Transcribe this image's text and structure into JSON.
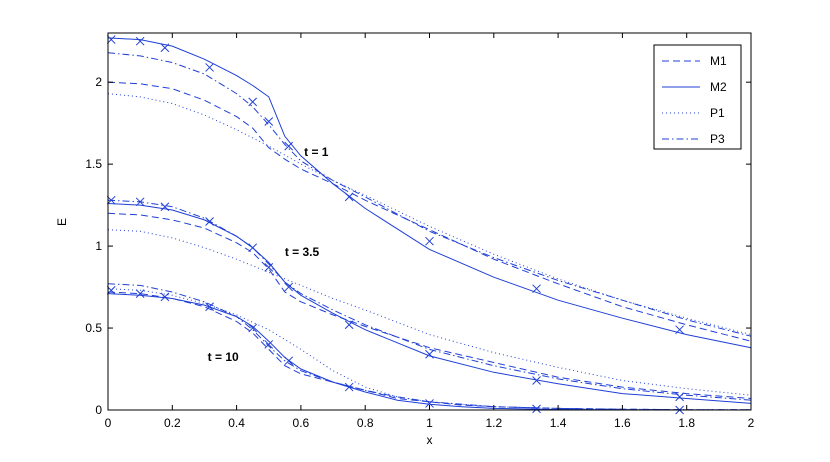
{
  "chart_data": {
    "type": "line",
    "xlabel": "x",
    "ylabel": "E",
    "xlim": [
      0,
      2
    ],
    "ylim": [
      0,
      2.3
    ],
    "xticks": [
      "0",
      "0.2",
      "0.4",
      "0.6",
      "0.8",
      "1",
      "1.2",
      "1.4",
      "1.6",
      "1.8",
      "2"
    ],
    "yticks": [
      "0",
      "0.5",
      "1",
      "1.5",
      "2"
    ],
    "grid": false,
    "legend_position": "top-right",
    "color": "#1f3fd6",
    "series": [
      {
        "name": "M1",
        "style": "dashed",
        "group": "t = 1",
        "x": [
          0,
          0.1,
          0.2,
          0.3,
          0.4,
          0.45,
          0.5,
          0.55,
          0.6,
          0.7,
          0.8,
          1.0,
          1.2,
          1.4,
          1.6,
          1.8,
          2.0
        ],
        "y": [
          2.0,
          1.99,
          1.96,
          1.89,
          1.79,
          1.72,
          1.6,
          1.53,
          1.47,
          1.38,
          1.28,
          1.1,
          0.92,
          0.77,
          0.63,
          0.52,
          0.42
        ]
      },
      {
        "name": "M2",
        "style": "solid",
        "group": "t = 1",
        "x": [
          0,
          0.1,
          0.2,
          0.3,
          0.4,
          0.45,
          0.5,
          0.55,
          0.6,
          0.7,
          0.8,
          1.0,
          1.2,
          1.4,
          1.6,
          1.8,
          2.0
        ],
        "y": [
          2.27,
          2.26,
          2.22,
          2.14,
          2.04,
          1.98,
          1.91,
          1.67,
          1.55,
          1.38,
          1.23,
          0.98,
          0.81,
          0.67,
          0.56,
          0.46,
          0.38
        ]
      },
      {
        "name": "P1",
        "style": "dotted",
        "group": "t = 1",
        "x": [
          0,
          0.1,
          0.2,
          0.3,
          0.4,
          0.5,
          0.6,
          0.7,
          0.8,
          1.0,
          1.2,
          1.4,
          1.6,
          1.8,
          2.0
        ],
        "y": [
          1.93,
          1.91,
          1.87,
          1.8,
          1.71,
          1.61,
          1.5,
          1.4,
          1.31,
          1.12,
          0.95,
          0.8,
          0.67,
          0.56,
          0.46
        ]
      },
      {
        "name": "P3",
        "style": "dashdot",
        "group": "t = 1",
        "x": [
          0,
          0.1,
          0.2,
          0.3,
          0.4,
          0.45,
          0.5,
          0.55,
          0.6,
          0.7,
          0.8,
          1.0,
          1.2,
          1.4,
          1.6,
          1.8,
          2.0
        ],
        "y": [
          2.18,
          2.16,
          2.12,
          2.05,
          1.93,
          1.85,
          1.74,
          1.62,
          1.52,
          1.4,
          1.3,
          1.09,
          0.93,
          0.79,
          0.67,
          0.55,
          0.45
        ]
      },
      {
        "name": "M1",
        "style": "dashed",
        "group": "t = 3.5",
        "x": [
          0,
          0.1,
          0.2,
          0.3,
          0.4,
          0.45,
          0.5,
          0.55,
          0.6,
          0.7,
          0.8,
          1.0,
          1.2,
          1.4,
          1.6,
          1.8,
          2.0
        ],
        "y": [
          1.2,
          1.19,
          1.16,
          1.11,
          1.02,
          0.96,
          0.86,
          0.72,
          0.66,
          0.58,
          0.51,
          0.38,
          0.29,
          0.2,
          0.14,
          0.1,
          0.07
        ]
      },
      {
        "name": "M2",
        "style": "solid",
        "group": "t = 3.5",
        "x": [
          0,
          0.1,
          0.2,
          0.3,
          0.4,
          0.45,
          0.5,
          0.55,
          0.6,
          0.7,
          0.8,
          1.0,
          1.2,
          1.4,
          1.6,
          1.8,
          2.0
        ],
        "y": [
          1.26,
          1.25,
          1.22,
          1.16,
          1.06,
          0.99,
          0.9,
          0.78,
          0.7,
          0.59,
          0.49,
          0.33,
          0.23,
          0.16,
          0.1,
          0.07,
          0.04
        ]
      },
      {
        "name": "P1",
        "style": "dotted",
        "group": "t = 3.5",
        "x": [
          0,
          0.1,
          0.2,
          0.3,
          0.4,
          0.5,
          0.6,
          0.7,
          0.8,
          1.0,
          1.2,
          1.4,
          1.6,
          1.8,
          2.0
        ],
        "y": [
          1.1,
          1.09,
          1.05,
          0.99,
          0.92,
          0.84,
          0.76,
          0.68,
          0.61,
          0.46,
          0.35,
          0.26,
          0.18,
          0.13,
          0.09
        ]
      },
      {
        "name": "P3",
        "style": "dashdot",
        "group": "t = 3.5",
        "x": [
          0,
          0.1,
          0.2,
          0.3,
          0.4,
          0.45,
          0.5,
          0.55,
          0.6,
          0.7,
          0.8,
          1.0,
          1.2,
          1.4,
          1.6,
          1.8,
          2.0
        ],
        "y": [
          1.28,
          1.27,
          1.24,
          1.17,
          1.06,
          0.99,
          0.89,
          0.78,
          0.71,
          0.61,
          0.52,
          0.37,
          0.27,
          0.19,
          0.13,
          0.09,
          0.06
        ]
      },
      {
        "name": "M1",
        "style": "dashed",
        "group": "t = 10",
        "x": [
          0,
          0.1,
          0.2,
          0.3,
          0.4,
          0.45,
          0.5,
          0.55,
          0.6,
          0.7,
          0.8,
          0.9,
          1.0,
          1.1,
          1.2,
          1.4,
          1.6,
          1.8,
          2.0
        ],
        "y": [
          0.72,
          0.71,
          0.68,
          0.63,
          0.54,
          0.47,
          0.37,
          0.27,
          0.22,
          0.17,
          0.12,
          0.07,
          0.05,
          0.03,
          0.02,
          0.01,
          0.005,
          0.002,
          0.001
        ]
      },
      {
        "name": "M2",
        "style": "solid",
        "group": "t = 10",
        "x": [
          0,
          0.1,
          0.2,
          0.3,
          0.4,
          0.45,
          0.5,
          0.55,
          0.6,
          0.7,
          0.8,
          0.9,
          1.0,
          1.1,
          1.2,
          1.4,
          1.6,
          1.8,
          2.0
        ],
        "y": [
          0.71,
          0.7,
          0.68,
          0.64,
          0.57,
          0.51,
          0.42,
          0.32,
          0.25,
          0.17,
          0.11,
          0.06,
          0.035,
          0.02,
          0.01,
          0.003,
          0.001,
          0.0,
          0.0
        ]
      },
      {
        "name": "P1",
        "style": "dotted",
        "group": "t = 10",
        "x": [
          0,
          0.1,
          0.2,
          0.3,
          0.4,
          0.5,
          0.6,
          0.7,
          0.8,
          0.9,
          1.0,
          1.2,
          1.4,
          1.6,
          1.8,
          2.0
        ],
        "y": [
          0.74,
          0.73,
          0.7,
          0.65,
          0.58,
          0.49,
          0.37,
          0.24,
          0.14,
          0.08,
          0.05,
          0.02,
          0.01,
          0.004,
          0.002,
          0.001
        ]
      },
      {
        "name": "P3",
        "style": "dashdot",
        "group": "t = 10",
        "x": [
          0,
          0.1,
          0.2,
          0.3,
          0.4,
          0.45,
          0.5,
          0.55,
          0.6,
          0.7,
          0.8,
          0.9,
          1.0,
          1.2,
          1.4,
          1.6,
          1.8,
          2.0
        ],
        "y": [
          0.77,
          0.76,
          0.72,
          0.66,
          0.57,
          0.49,
          0.39,
          0.3,
          0.24,
          0.17,
          0.12,
          0.08,
          0.05,
          0.02,
          0.01,
          0.004,
          0.002,
          0.001
        ]
      }
    ],
    "markers": {
      "symbol": "x",
      "x": [
        0.01,
        0.1,
        0.177,
        0.316,
        0.45,
        0.5,
        0.562,
        0.75,
        1.0,
        1.333,
        1.778
      ],
      "sets": [
        {
          "group": "t = 1",
          "y": [
            2.26,
            2.25,
            2.21,
            2.09,
            1.88,
            1.76,
            1.61,
            1.3,
            1.03,
            0.74,
            0.49
          ]
        },
        {
          "group": "t = 3.5",
          "y": [
            1.28,
            1.27,
            1.24,
            1.15,
            0.99,
            0.87,
            0.75,
            0.52,
            0.34,
            0.18,
            0.08
          ]
        },
        {
          "group": "t = 10",
          "y": [
            0.73,
            0.71,
            0.69,
            0.63,
            0.5,
            0.4,
            0.3,
            0.14,
            0.04,
            0.007,
            0.0
          ]
        }
      ]
    },
    "annotations": [
      {
        "text": "t = 1",
        "x": 0.61,
        "y": 1.55
      },
      {
        "text": "t = 3.5",
        "x": 0.55,
        "y": 0.94
      },
      {
        "text": "t = 10",
        "x": 0.31,
        "y": 0.3
      }
    ],
    "legend": [
      "M1",
      "M2",
      "P1",
      "P3"
    ]
  }
}
